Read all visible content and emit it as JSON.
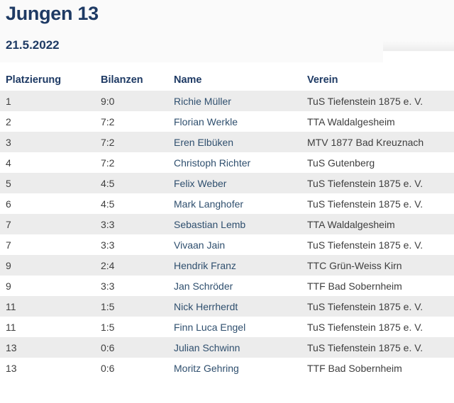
{
  "page": {
    "title": "Jungen 13",
    "date": "21.5.2022"
  },
  "colors": {
    "title-navy": "#1e3a64",
    "link-navy": "#2f4f6e",
    "cell-text": "#3e3e3e",
    "stripe-gray": "#ececec",
    "header-bg": "#fafafa"
  },
  "table": {
    "headers": {
      "platzierung": "Platzierung",
      "bilanzen": "Bilanzen",
      "name": "Name",
      "verein": "Verein"
    },
    "rows": [
      {
        "platzierung": "1",
        "bilanzen": "9:0",
        "name": "Richie Müller",
        "verein": "TuS Tiefenstein 1875 e. V."
      },
      {
        "platzierung": "2",
        "bilanzen": "7:2",
        "name": "Florian Werkle",
        "verein": "TTA Waldalgesheim"
      },
      {
        "platzierung": "3",
        "bilanzen": "7:2",
        "name": "Eren Elbüken",
        "verein": "MTV 1877 Bad Kreuznach"
      },
      {
        "platzierung": "4",
        "bilanzen": "7:2",
        "name": "Christoph Richter",
        "verein": "TuS Gutenberg"
      },
      {
        "platzierung": "5",
        "bilanzen": "4:5",
        "name": "Felix Weber",
        "verein": "TuS Tiefenstein 1875 e. V."
      },
      {
        "platzierung": "6",
        "bilanzen": "4:5",
        "name": "Mark Langhofer",
        "verein": "TuS Tiefenstein 1875 e. V."
      },
      {
        "platzierung": "7",
        "bilanzen": "3:3",
        "name": "Sebastian Lemb",
        "verein": "TTA Waldalgesheim"
      },
      {
        "platzierung": "7",
        "bilanzen": "3:3",
        "name": "Vivaan Jain",
        "verein": "TuS Tiefenstein 1875 e. V."
      },
      {
        "platzierung": "9",
        "bilanzen": "2:4",
        "name": "Hendrik Franz",
        "verein": "TTC Grün-Weiss Kirn"
      },
      {
        "platzierung": "9",
        "bilanzen": "3:3",
        "name": "Jan Schröder",
        "verein": "TTF Bad Sobernheim"
      },
      {
        "platzierung": "11",
        "bilanzen": "1:5",
        "name": "Nick Herrherdt",
        "verein": "TuS Tiefenstein 1875 e. V."
      },
      {
        "platzierung": "11",
        "bilanzen": "1:5",
        "name": "Finn Luca Engel",
        "verein": "TuS Tiefenstein 1875 e. V."
      },
      {
        "platzierung": "13",
        "bilanzen": "0:6",
        "name": "Julian Schwinn",
        "verein": "TuS Tiefenstein 1875 e. V."
      },
      {
        "platzierung": "13",
        "bilanzen": "0:6",
        "name": "Moritz Gehring",
        "verein": "TTF Bad Sobernheim"
      }
    ]
  }
}
